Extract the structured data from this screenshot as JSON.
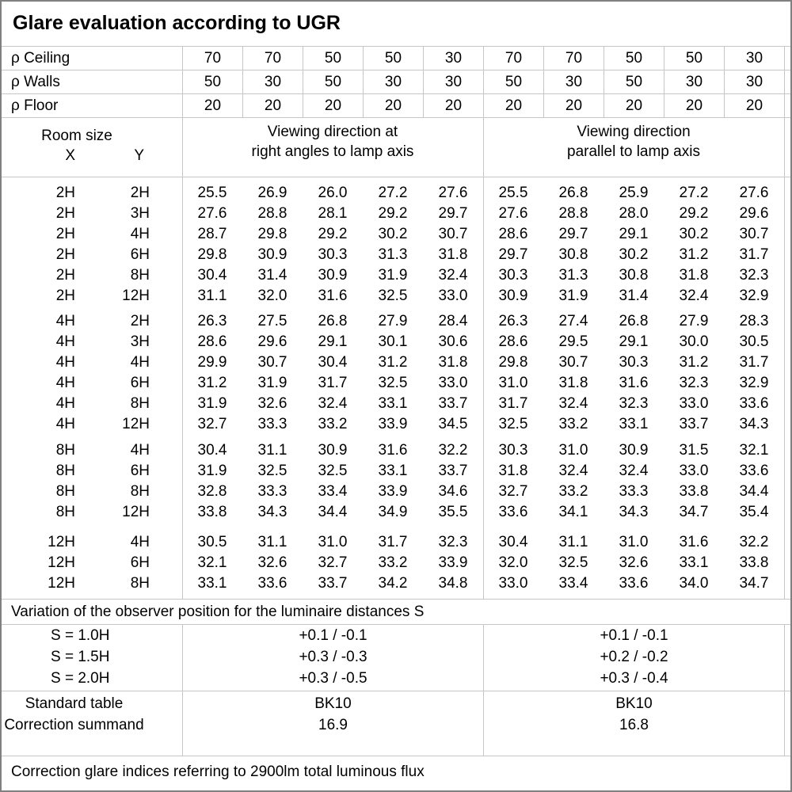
{
  "title": "Glare evaluation according to UGR",
  "colors": {
    "grid_line": "#c6c6c6",
    "outer_border": "#808080",
    "text": "#000000",
    "background": "#ffffff"
  },
  "reflectance_rows": [
    {
      "label": "ρ Ceiling",
      "values": [
        "70",
        "70",
        "50",
        "50",
        "30",
        "70",
        "70",
        "50",
        "50",
        "30"
      ]
    },
    {
      "label": "ρ Walls",
      "values": [
        "50",
        "30",
        "50",
        "30",
        "30",
        "50",
        "30",
        "50",
        "30",
        "30"
      ]
    },
    {
      "label": "ρ Floor",
      "values": [
        "20",
        "20",
        "20",
        "20",
        "20",
        "20",
        "20",
        "20",
        "20",
        "20"
      ]
    }
  ],
  "room_header": {
    "room_size": "Room size",
    "x_label": "X",
    "y_label": "Y",
    "left_heading": {
      "line1": "Viewing direction at",
      "line2": "right angles to lamp axis"
    },
    "right_heading": {
      "line1": "Viewing direction",
      "line2": "parallel to lamp axis"
    }
  },
  "ugr_groups": [
    {
      "rows": [
        {
          "x": "2H",
          "y": "2H",
          "values": [
            "25.5",
            "26.9",
            "26.0",
            "27.2",
            "27.6",
            "25.5",
            "26.8",
            "25.9",
            "27.2",
            "27.6"
          ]
        },
        {
          "x": "2H",
          "y": "3H",
          "values": [
            "27.6",
            "28.8",
            "28.1",
            "29.2",
            "29.7",
            "27.6",
            "28.8",
            "28.0",
            "29.2",
            "29.6"
          ]
        },
        {
          "x": "2H",
          "y": "4H",
          "values": [
            "28.7",
            "29.8",
            "29.2",
            "30.2",
            "30.7",
            "28.6",
            "29.7",
            "29.1",
            "30.2",
            "30.7"
          ]
        },
        {
          "x": "2H",
          "y": "6H",
          "values": [
            "29.8",
            "30.9",
            "30.3",
            "31.3",
            "31.8",
            "29.7",
            "30.8",
            "30.2",
            "31.2",
            "31.7"
          ]
        },
        {
          "x": "2H",
          "y": "8H",
          "values": [
            "30.4",
            "31.4",
            "30.9",
            "31.9",
            "32.4",
            "30.3",
            "31.3",
            "30.8",
            "31.8",
            "32.3"
          ]
        },
        {
          "x": "2H",
          "y": "12H",
          "values": [
            "31.1",
            "32.0",
            "31.6",
            "32.5",
            "33.0",
            "30.9",
            "31.9",
            "31.4",
            "32.4",
            "32.9"
          ]
        }
      ]
    },
    {
      "rows": [
        {
          "x": "4H",
          "y": "2H",
          "values": [
            "26.3",
            "27.5",
            "26.8",
            "27.9",
            "28.4",
            "26.3",
            "27.4",
            "26.8",
            "27.9",
            "28.3"
          ]
        },
        {
          "x": "4H",
          "y": "3H",
          "values": [
            "28.6",
            "29.6",
            "29.1",
            "30.1",
            "30.6",
            "28.6",
            "29.5",
            "29.1",
            "30.0",
            "30.5"
          ]
        },
        {
          "x": "4H",
          "y": "4H",
          "values": [
            "29.9",
            "30.7",
            "30.4",
            "31.2",
            "31.8",
            "29.8",
            "30.7",
            "30.3",
            "31.2",
            "31.7"
          ]
        },
        {
          "x": "4H",
          "y": "6H",
          "values": [
            "31.2",
            "31.9",
            "31.7",
            "32.5",
            "33.0",
            "31.0",
            "31.8",
            "31.6",
            "32.3",
            "32.9"
          ]
        },
        {
          "x": "4H",
          "y": "8H",
          "values": [
            "31.9",
            "32.6",
            "32.4",
            "33.1",
            "33.7",
            "31.7",
            "32.4",
            "32.3",
            "33.0",
            "33.6"
          ]
        },
        {
          "x": "4H",
          "y": "12H",
          "values": [
            "32.7",
            "33.3",
            "33.2",
            "33.9",
            "34.5",
            "32.5",
            "33.2",
            "33.1",
            "33.7",
            "34.3"
          ]
        }
      ]
    },
    {
      "rows": [
        {
          "x": "8H",
          "y": "4H",
          "values": [
            "30.4",
            "31.1",
            "30.9",
            "31.6",
            "32.2",
            "30.3",
            "31.0",
            "30.9",
            "31.5",
            "32.1"
          ]
        },
        {
          "x": "8H",
          "y": "6H",
          "values": [
            "31.9",
            "32.5",
            "32.5",
            "33.1",
            "33.7",
            "31.8",
            "32.4",
            "32.4",
            "33.0",
            "33.6"
          ]
        },
        {
          "x": "8H",
          "y": "8H",
          "values": [
            "32.8",
            "33.3",
            "33.4",
            "33.9",
            "34.6",
            "32.7",
            "33.2",
            "33.3",
            "33.8",
            "34.4"
          ]
        },
        {
          "x": "8H",
          "y": "12H",
          "values": [
            "33.8",
            "34.3",
            "34.4",
            "34.9",
            "35.5",
            "33.6",
            "34.1",
            "34.3",
            "34.7",
            "35.4"
          ]
        }
      ]
    },
    {
      "rows": [
        {
          "x": "12H",
          "y": "4H",
          "values": [
            "30.5",
            "31.1",
            "31.0",
            "31.7",
            "32.3",
            "30.4",
            "31.1",
            "31.0",
            "31.6",
            "32.2"
          ]
        },
        {
          "x": "12H",
          "y": "6H",
          "values": [
            "32.1",
            "32.6",
            "32.7",
            "33.2",
            "33.9",
            "32.0",
            "32.5",
            "32.6",
            "33.1",
            "33.8"
          ]
        },
        {
          "x": "12H",
          "y": "8H",
          "values": [
            "33.1",
            "33.6",
            "33.7",
            "34.2",
            "34.8",
            "33.0",
            "33.4",
            "33.6",
            "34.0",
            "34.7"
          ]
        }
      ]
    }
  ],
  "variation_note": "Variation of the observer position for the luminaire distances S",
  "spacing_section": {
    "labels": [
      "S = 1.0H",
      "S = 1.5H",
      "S = 2.0H"
    ],
    "left_values": [
      "+0.1 / -0.1",
      "+0.3 / -0.3",
      "+0.3 / -0.5"
    ],
    "right_values": [
      "+0.1 / -0.1",
      "+0.2 / -0.2",
      "+0.3 / -0.4"
    ]
  },
  "standard_section": {
    "labels": [
      "Standard table",
      "Correction summand"
    ],
    "left_values": [
      "BK10",
      "16.9"
    ],
    "right_values": [
      "BK10",
      "16.8"
    ]
  },
  "footer_note": "Correction glare indices referring to 2900lm total luminous flux"
}
